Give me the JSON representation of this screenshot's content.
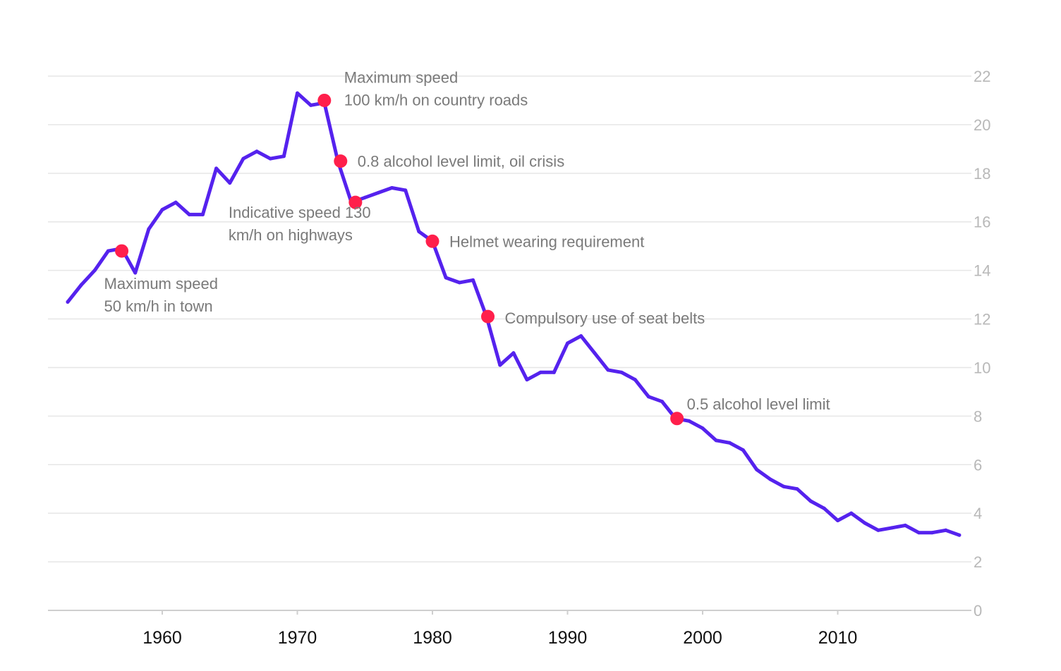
{
  "chart_data": {
    "type": "line",
    "title": "",
    "xlabel": "",
    "ylabel": "",
    "xlim": [
      1952,
      2019.5
    ],
    "ylim": [
      0,
      22
    ],
    "yticks": [
      0,
      2,
      4,
      6,
      8,
      10,
      12,
      14,
      16,
      18,
      20,
      22
    ],
    "xticks": [
      1960,
      1970,
      1980,
      1990,
      2000,
      2010
    ],
    "grid": true,
    "y_axis_side": "right",
    "colors": {
      "line": "#5522ee",
      "marker": "#ff1f4b"
    },
    "series": [
      {
        "x": [
          1953,
          1954,
          1955,
          1956,
          1957,
          1958,
          1959,
          1960,
          1961,
          1962,
          1963,
          1964,
          1965,
          1966,
          1967,
          1968,
          1969,
          1970,
          1971,
          1972,
          1973,
          1974,
          1975,
          1976,
          1977,
          1978,
          1979,
          1980,
          1981,
          1982,
          1983,
          1984,
          1985,
          1986,
          1987,
          1988,
          1989,
          1990,
          1991,
          1992,
          1993,
          1994,
          1995,
          1996,
          1997,
          1998,
          1999,
          2000,
          2001,
          2002,
          2003,
          2004,
          2005,
          2006,
          2007,
          2008,
          2009,
          2010,
          2011,
          2012,
          2013,
          2014,
          2015,
          2016,
          2017,
          2018,
          2019
        ],
        "y": [
          12.7,
          13.4,
          14.0,
          14.8,
          14.9,
          13.9,
          15.7,
          16.5,
          16.8,
          16.3,
          16.3,
          18.2,
          17.6,
          18.6,
          18.9,
          18.6,
          18.7,
          21.3,
          20.8,
          20.9,
          18.5,
          16.8,
          17.0,
          17.2,
          17.4,
          17.3,
          15.6,
          15.2,
          13.7,
          13.5,
          13.6,
          12.1,
          10.1,
          10.6,
          9.5,
          9.8,
          9.8,
          11.0,
          11.3,
          10.6,
          9.9,
          9.8,
          9.5,
          8.8,
          8.6,
          7.9,
          7.8,
          7.5,
          7.0,
          6.9,
          6.6,
          5.8,
          5.4,
          5.1,
          5.0,
          4.5,
          4.2,
          3.7,
          4.0,
          3.6,
          3.3,
          3.4,
          3.5,
          3.2,
          3.2,
          3.3,
          3.1
        ]
      }
    ],
    "annotations": [
      {
        "x": 1957,
        "y": 14.8,
        "lines": [
          "Maximum speed",
          "50 km/h in town"
        ]
      },
      {
        "x": 1972,
        "y": 21.0,
        "lines": [
          "Maximum speed",
          "100 km/h on country roads"
        ]
      },
      {
        "x": 1973.2,
        "y": 18.5,
        "lines": [
          "0.8 alcohol level limit, oil crisis"
        ]
      },
      {
        "x": 1974.3,
        "y": 16.8,
        "lines": [
          "Indicative speed 130",
          "km/h on highways"
        ]
      },
      {
        "x": 1980,
        "y": 15.2,
        "lines": [
          "Helmet wearing requirement"
        ]
      },
      {
        "x": 1984.1,
        "y": 12.1,
        "lines": [
          "Compulsory use of seat belts"
        ]
      },
      {
        "x": 1998.1,
        "y": 7.9,
        "lines": [
          "0.5 alcohol level limit"
        ]
      }
    ]
  }
}
